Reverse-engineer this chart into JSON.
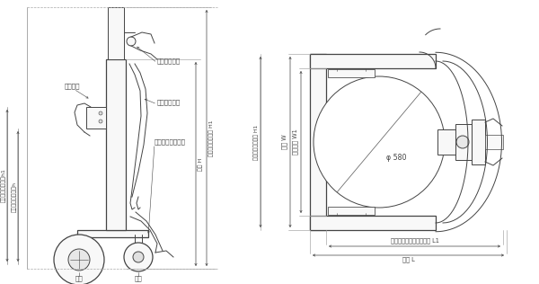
{
  "bg": "#ffffff",
  "lc": "#444444",
  "dc": "#444444",
  "fc": "#f8f8f8",
  "lw": 0.7,
  "lw_t": 0.9,
  "lw_d": 0.5,
  "fs": 5.2,
  "fs_d": 4.8,
  "left": {
    "chuck": "チャック",
    "lower_handle": "下降ハンドル",
    "steer_handle": "操向ハンドル",
    "foot_pedal": "上昇足踏みペダル",
    "front_wheel": "前輪",
    "rear_wheel": "後輪",
    "max_chuck_h1": "最高チャック高さh1",
    "min_chuck_h": "最低チャック高さh",
    "total_h": "全高 H",
    "max_lift_h1": "最大リフト時全高 H1"
  },
  "right": {
    "total_w": "全幅 W",
    "inner_w1": "前輪内幅 W1",
    "phi": "φ 580",
    "pedal_l1": "ペダル折りたたみ時全長 L1",
    "total_l": "全長 L"
  }
}
